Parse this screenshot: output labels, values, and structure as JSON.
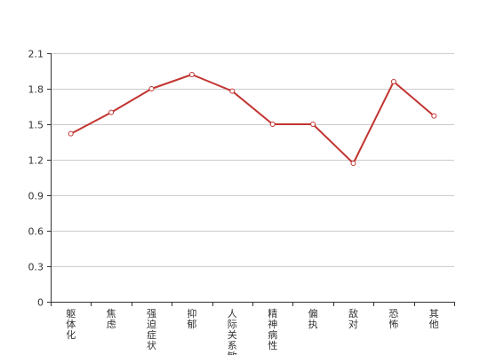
{
  "chart_data": {
    "type": "line",
    "title": "",
    "xlabel": "",
    "ylabel": "",
    "categories": [
      "躯体化",
      "焦虑",
      "强迫症状",
      "抑郁",
      "人际关系敏感",
      "精神病性",
      "偏执",
      "敌对",
      "恐怖",
      "其他"
    ],
    "series": [
      {
        "values": [
          1.42,
          1.6,
          1.8,
          1.92,
          1.78,
          1.5,
          1.5,
          1.17,
          1.86,
          1.57
        ]
      }
    ],
    "ylim": [
      0,
      2.1
    ],
    "yticks": [
      "0",
      "0.3",
      "0.6",
      "0.9",
      "1.2",
      "1.5",
      "1.8",
      "2.1"
    ],
    "grid": true,
    "legend": "none",
    "colors": {
      "line": "#c23531",
      "grid": "#cccccc",
      "axis": "#333333",
      "marker_fill": "#ffffff"
    }
  }
}
